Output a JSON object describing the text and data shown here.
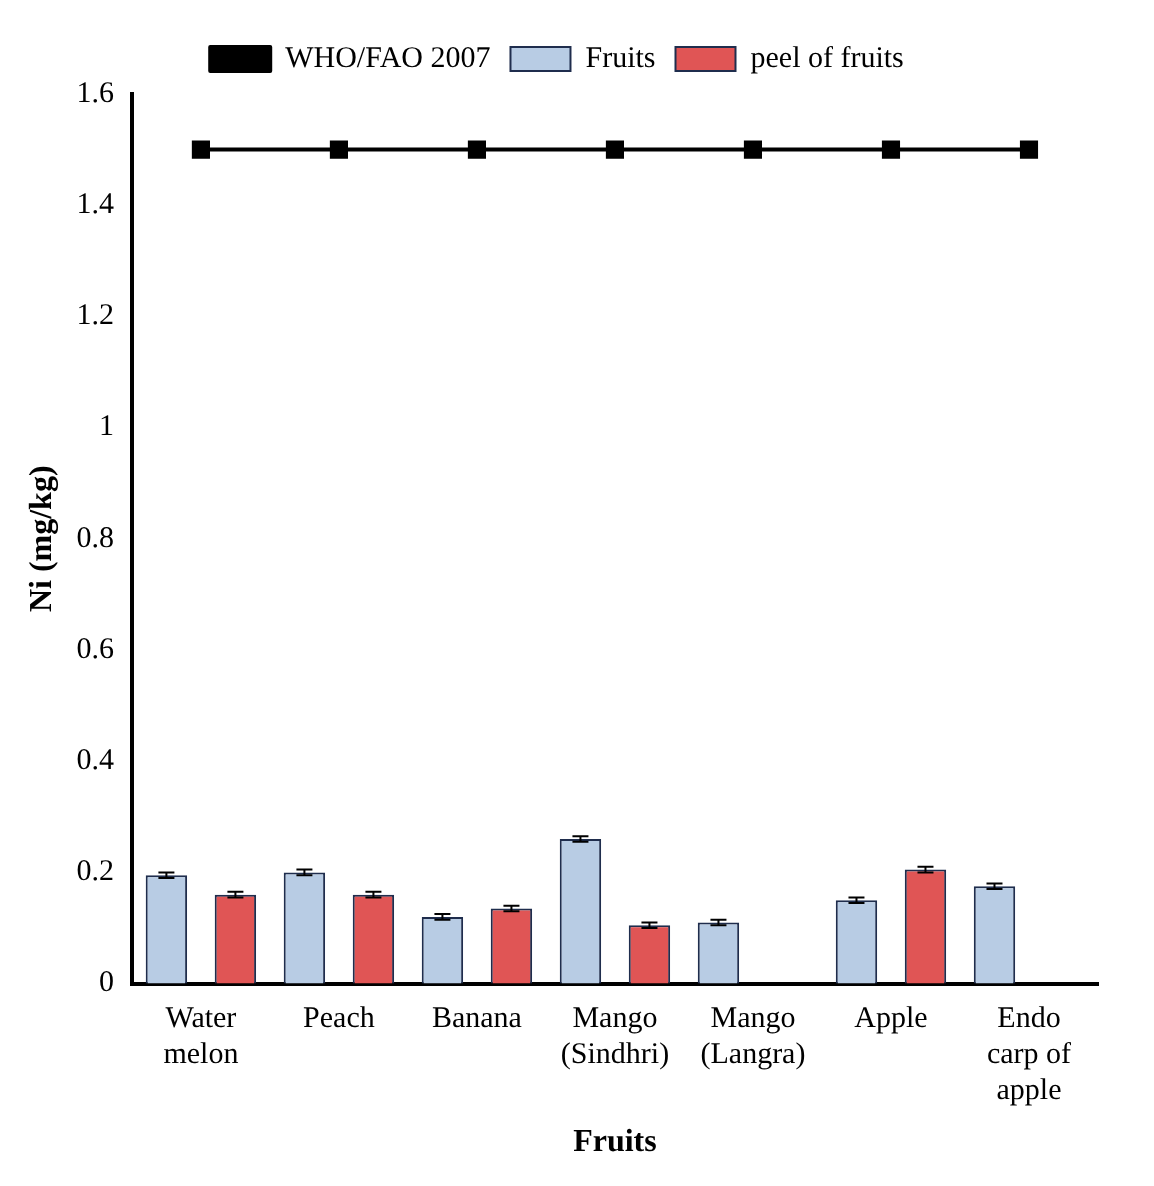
{
  "chart_data": {
    "type": "bar",
    "xlabel": "Fruits",
    "ylabel": "Ni (mg/kg)",
    "categories": [
      "Water melon",
      "Peach",
      "Banana",
      "Mango (Sindhri)",
      "Mango (Langra)",
      "Apple",
      "Endo carp of apple"
    ],
    "series": [
      {
        "name": "Fruits",
        "color": "#b8cce4",
        "values": [
          0.195,
          0.2,
          0.12,
          0.26,
          0.11,
          0.15,
          0.175
        ],
        "errors": [
          0.005,
          0.005,
          0.005,
          0.005,
          0.005,
          0.005,
          0.005
        ]
      },
      {
        "name": "peel of fruits",
        "color": "#e05555",
        "values": [
          0.16,
          0.16,
          0.135,
          0.105,
          null,
          0.205,
          null
        ],
        "errors": [
          0.005,
          0.005,
          0.005,
          0.005,
          null,
          0.005,
          null
        ]
      },
      {
        "name": "WHO/FAO 2007",
        "type": "line",
        "color": "#000000",
        "marker": "square",
        "values": [
          1.5,
          1.5,
          1.5,
          1.5,
          1.5,
          1.5,
          1.5
        ]
      }
    ],
    "ylim": [
      0,
      1.6
    ],
    "yticks": [
      0,
      0.2,
      0.4,
      0.6,
      0.8,
      1,
      1.2,
      1.4,
      1.6
    ],
    "grid": false,
    "legend": "top"
  }
}
